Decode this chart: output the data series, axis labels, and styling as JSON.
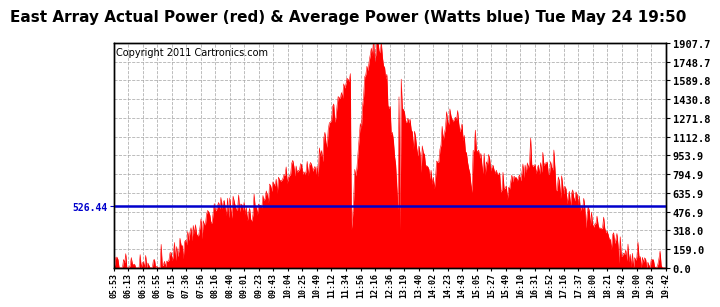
{
  "title": "East Array Actual Power (red) & Average Power (Watts blue) Tue May 24 19:50",
  "copyright": "Copyright 2011 Cartronics.com",
  "avg_power": 526.44,
  "ymax": 1907.7,
  "ymin": 0.0,
  "yticks": [
    0.0,
    159.0,
    318.0,
    476.9,
    635.9,
    794.9,
    953.9,
    1112.8,
    1271.8,
    1430.8,
    1589.8,
    1748.7,
    1907.7
  ],
  "ytick_labels": [
    "0.0",
    "159.0",
    "318.0",
    "476.9",
    "635.9",
    "794.9",
    "953.9",
    "1112.8",
    "1271.8",
    "1430.8",
    "1589.8",
    "1748.7",
    "1907.7"
  ],
  "xtick_labels": [
    "05:53",
    "06:13",
    "06:33",
    "06:55",
    "07:15",
    "07:36",
    "07:56",
    "08:16",
    "08:40",
    "09:01",
    "09:23",
    "09:43",
    "10:04",
    "10:25",
    "10:49",
    "11:12",
    "11:34",
    "11:56",
    "12:16",
    "12:36",
    "13:19",
    "13:40",
    "14:02",
    "14:23",
    "14:43",
    "15:05",
    "15:27",
    "15:49",
    "16:10",
    "16:31",
    "16:52",
    "17:16",
    "17:37",
    "18:00",
    "18:21",
    "18:42",
    "19:00",
    "19:20",
    "19:42"
  ],
  "fill_color": "#ff0000",
  "line_color": "#0000cc",
  "bg_color": "#ffffff",
  "grid_color": "#aaaaaa",
  "title_fontsize": 11,
  "copyright_fontsize": 7
}
